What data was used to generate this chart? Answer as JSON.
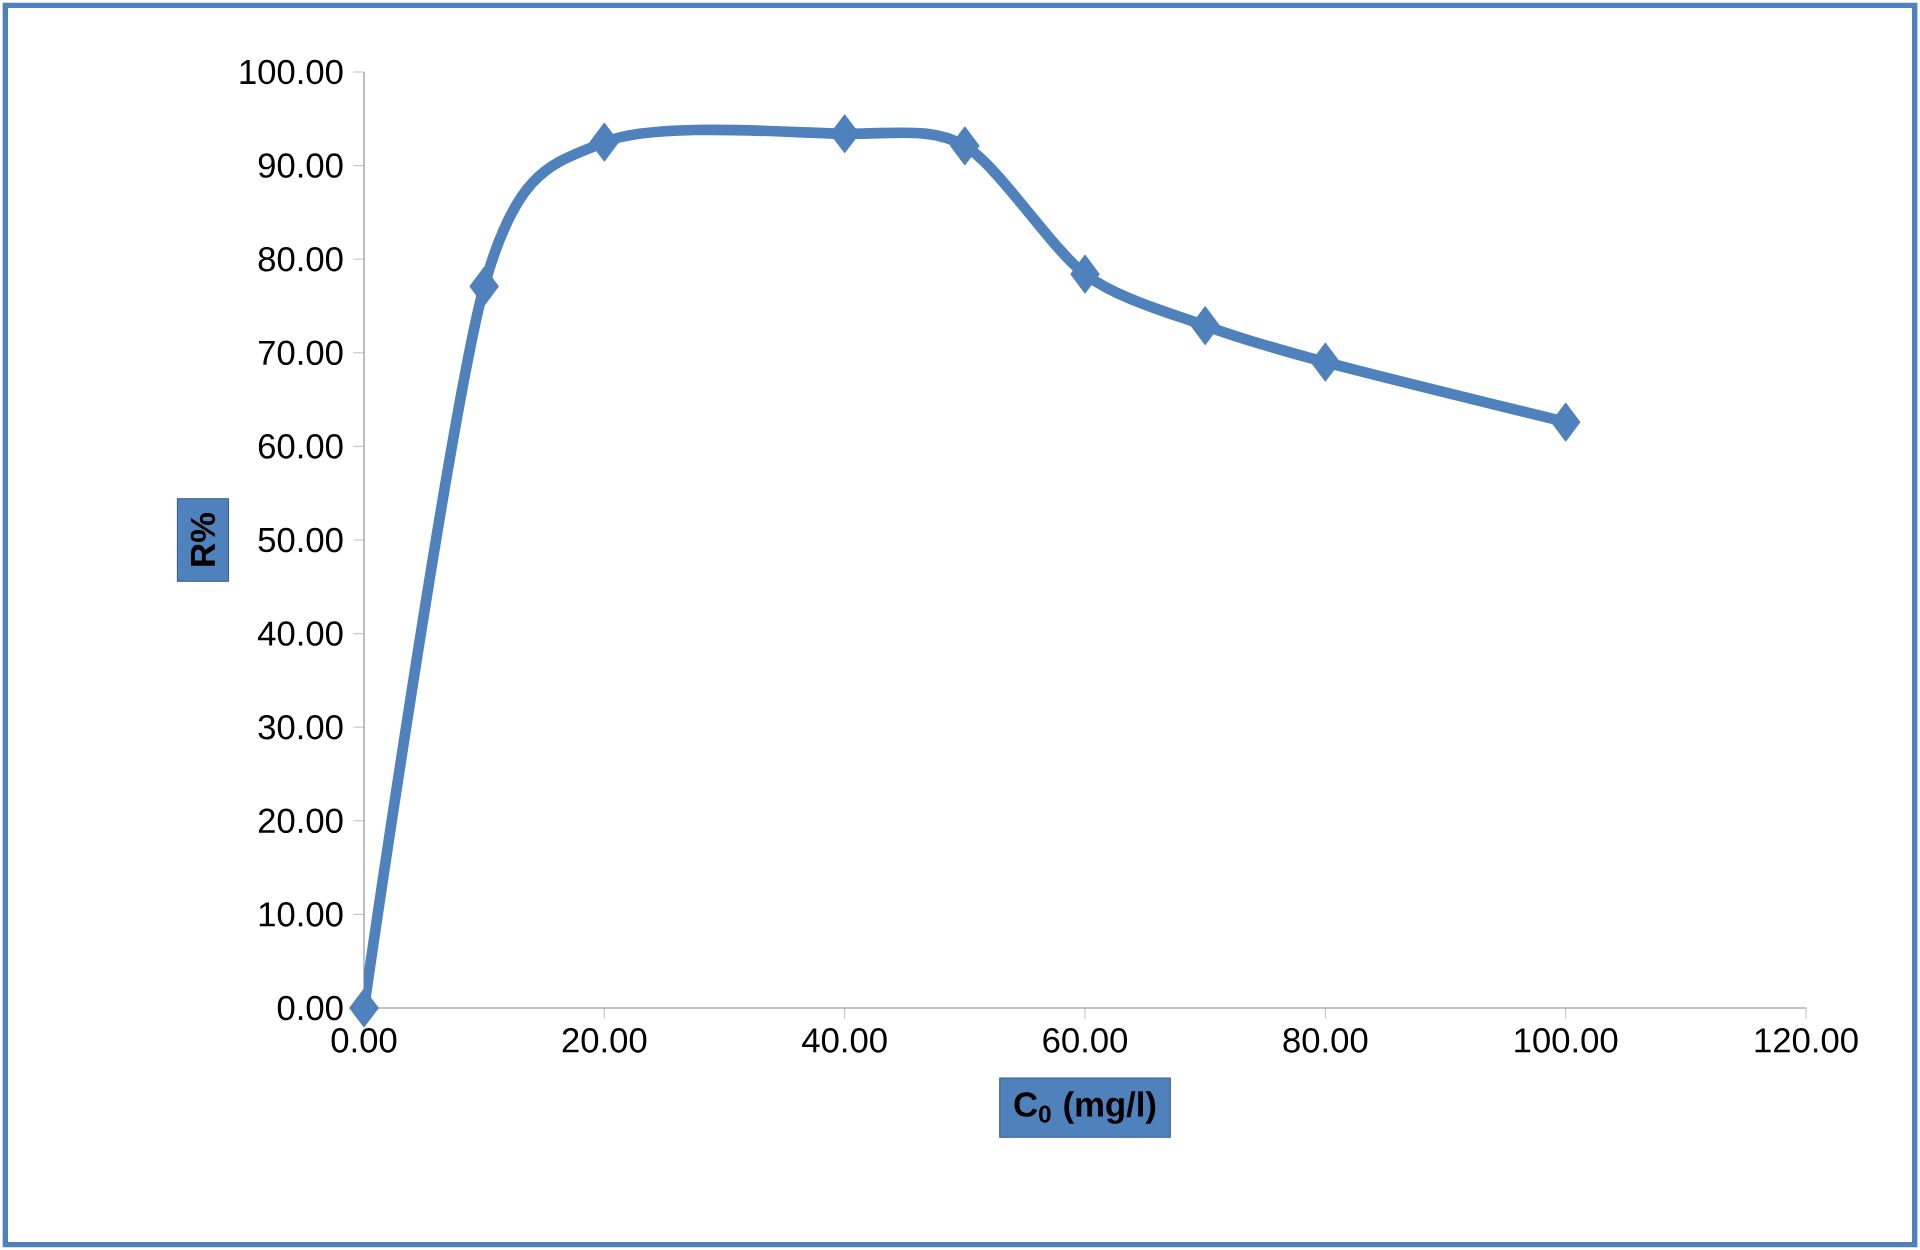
{
  "chart_data": {
    "type": "line",
    "xlabel": "C$_{0}$ (mg/l)",
    "ylabel": "R%",
    "x": [
      0,
      10,
      20,
      40,
      50,
      60,
      70,
      80,
      100
    ],
    "series": [
      {
        "color": "#4f81bd",
        "values": [
          0,
          77.1,
          92.5,
          93.4,
          92.1,
          78.4,
          72.9,
          69.0,
          62.6
        ]
      }
    ],
    "marker": "diamond",
    "line_style": "solid",
    "grid": false,
    "legend": false,
    "xlim": [
      0,
      120
    ],
    "ylim": [
      0,
      100
    ],
    "xticks": [
      {
        "value": 0,
        "label": "0.00"
      },
      {
        "value": 20,
        "label": "20.00"
      },
      {
        "value": 40,
        "label": "40.00"
      },
      {
        "value": 60,
        "label": "60.00"
      },
      {
        "value": 80,
        "label": "80.00"
      },
      {
        "value": 100,
        "label": "100.00"
      },
      {
        "value": 120,
        "label": "120.00"
      }
    ],
    "yticks": [
      {
        "value": 0,
        "label": "0.00"
      },
      {
        "value": 10,
        "label": "10.00"
      },
      {
        "value": 20,
        "label": "20.00"
      },
      {
        "value": 30,
        "label": "30.00"
      },
      {
        "value": 40,
        "label": "40.00"
      },
      {
        "value": 50,
        "label": "50.00"
      },
      {
        "value": 60,
        "label": "60.00"
      },
      {
        "value": 70,
        "label": "70.00"
      },
      {
        "value": 80,
        "label": "80.00"
      },
      {
        "value": 90,
        "label": "90.00"
      },
      {
        "value": 100,
        "label": "100.00"
      }
    ]
  }
}
